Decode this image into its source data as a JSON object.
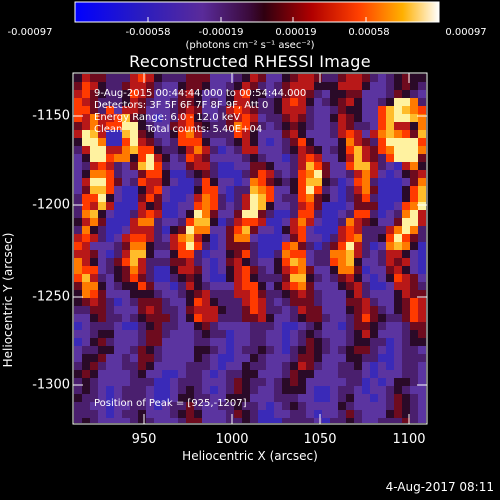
{
  "colorbar": {
    "ticks": [
      "-0.00097",
      "-0.00058",
      "-0.00019",
      "0.00019",
      "0.00058",
      "0.00097"
    ],
    "units": "(photons cm⁻² s⁻¹ asec⁻²)"
  },
  "plot": {
    "title": "Reconstructed RHESSI Image",
    "annotations": {
      "time_range": "9-Aug-2015 00:44:44.000 to 00:54:44.000",
      "detectors": "Detectors: 3F 5F 6F 7F 8F 9F, Att 0",
      "energy_range": "Energy Range: 6.0 - 12.0 keV",
      "algorithm": "Clean",
      "total_counts": "Total counts: 5.40E+04",
      "peak_position": "Position of Peak = [925,-1207]"
    },
    "x_axis_label": "Heliocentric X (arcsec)",
    "y_axis_label": "Heliocentric Y (arcsec)",
    "x_ticks": [
      "950",
      "1000",
      "1050",
      "1100"
    ],
    "y_ticks": [
      "-1150",
      "-1200",
      "-1250",
      "-1300"
    ]
  },
  "footer": {
    "timestamp": "4-Aug-2017 08:11"
  },
  "colors": {
    "background": "#000000",
    "foreground": "#ffffff"
  }
}
